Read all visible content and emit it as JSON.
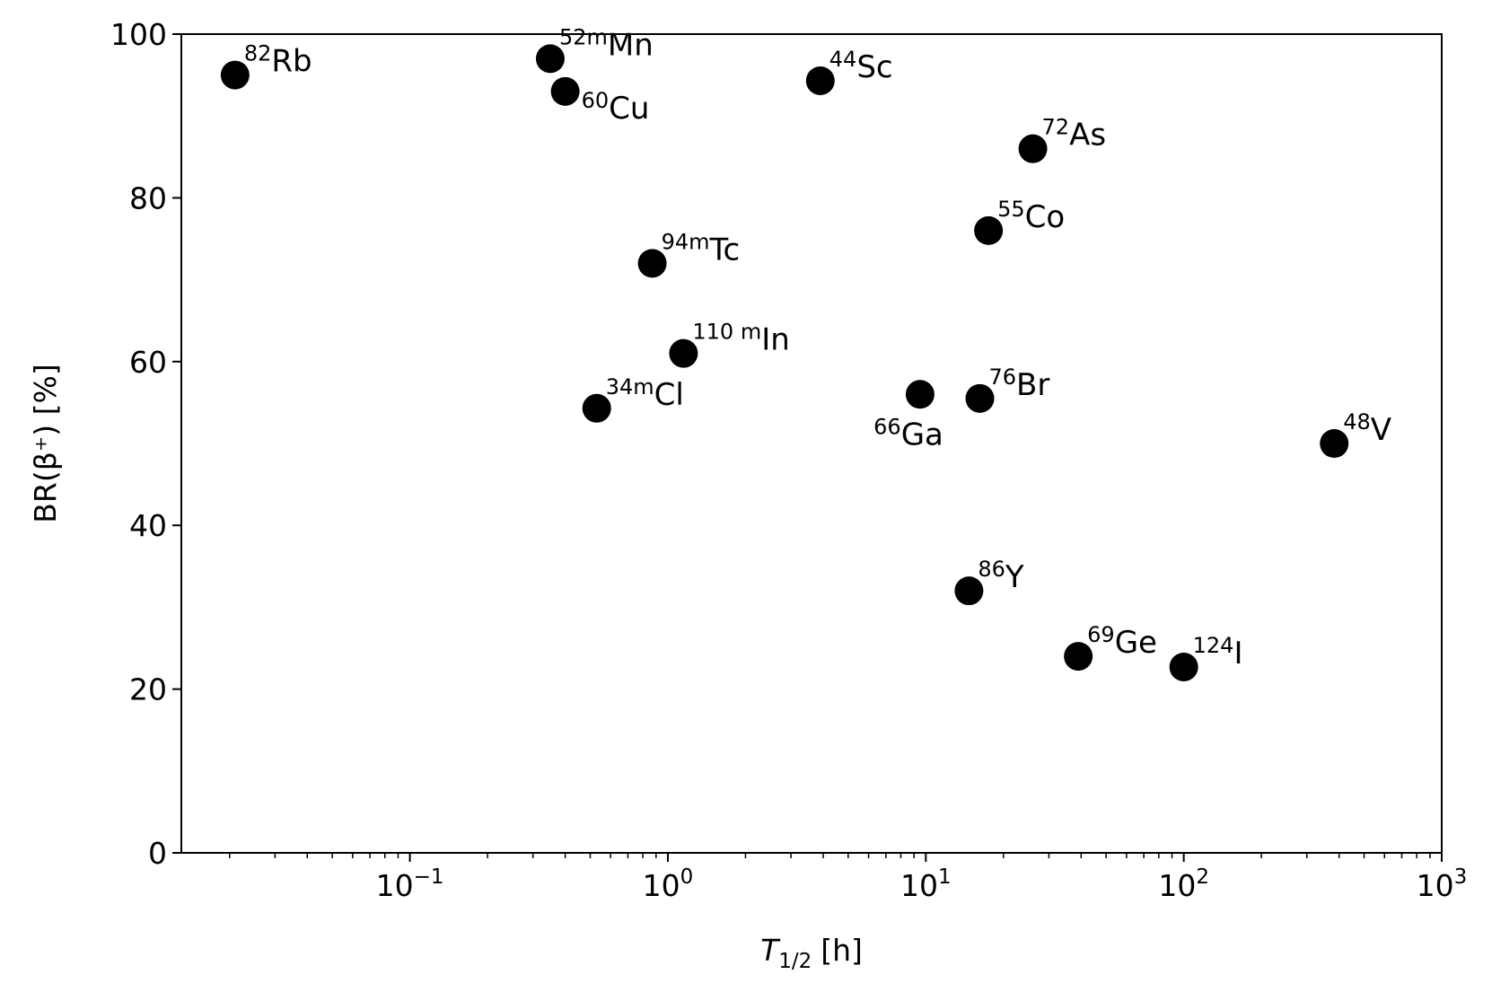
{
  "chart_data": {
    "type": "scatter",
    "xscale": "log",
    "xlabel_symbol": "T",
    "xlabel_subscript": "1/2",
    "xlabel_unit": "[h]",
    "ylabel": "BR(β⁺) [%]",
    "xlim": [
      0.013,
      1000
    ],
    "ylim": [
      0,
      100
    ],
    "grid": false,
    "marker_color": "#000000",
    "x_ticks": [
      {
        "value": 0.1,
        "base": "10",
        "exponent": "−1"
      },
      {
        "value": 1,
        "base": "10",
        "exponent": "0"
      },
      {
        "value": 10,
        "base": "10",
        "exponent": "1"
      },
      {
        "value": 100,
        "base": "10",
        "exponent": "2"
      },
      {
        "value": 1000,
        "base": "10",
        "exponent": "3"
      }
    ],
    "y_ticks": [
      "0",
      "20",
      "40",
      "60",
      "80",
      "100"
    ],
    "points": [
      {
        "mass": "82",
        "element": "Rb",
        "x": 0.021,
        "y": 95,
        "label_pos": "upper-right"
      },
      {
        "mass": "52m",
        "element": "Mn",
        "x": 0.35,
        "y": 97,
        "label_pos": "upper-right"
      },
      {
        "mass": "60",
        "element": "Cu",
        "x": 0.4,
        "y": 93,
        "label_pos": "lower-right"
      },
      {
        "mass": "44",
        "element": "Sc",
        "x": 3.9,
        "y": 94.3,
        "label_pos": "upper-right"
      },
      {
        "mass": "72",
        "element": "As",
        "x": 26,
        "y": 86,
        "label_pos": "upper-right"
      },
      {
        "mass": "55",
        "element": "Co",
        "x": 17.5,
        "y": 76,
        "label_pos": "upper-right"
      },
      {
        "mass": "94m",
        "element": "Tc",
        "x": 0.87,
        "y": 72,
        "label_pos": "upper-right"
      },
      {
        "mass": "110 m",
        "element": "In",
        "x": 1.15,
        "y": 61,
        "label_pos": "upper-right"
      },
      {
        "mass": "34m",
        "element": "Cl",
        "x": 0.53,
        "y": 54.3,
        "label_pos": "upper-right"
      },
      {
        "mass": "66",
        "element": "Ga",
        "x": 9.5,
        "y": 56,
        "label_pos": "lower-left"
      },
      {
        "mass": "76",
        "element": "Br",
        "x": 16.2,
        "y": 55.5,
        "label_pos": "upper-right"
      },
      {
        "mass": "48",
        "element": "V",
        "x": 383,
        "y": 50,
        "label_pos": "upper-right"
      },
      {
        "mass": "86",
        "element": "Y",
        "x": 14.7,
        "y": 32,
        "label_pos": "upper-right"
      },
      {
        "mass": "69",
        "element": "Ge",
        "x": 39,
        "y": 24,
        "label_pos": "upper-right"
      },
      {
        "mass": "124",
        "element": "I",
        "x": 100,
        "y": 22.7,
        "label_pos": "upper-right"
      }
    ]
  }
}
